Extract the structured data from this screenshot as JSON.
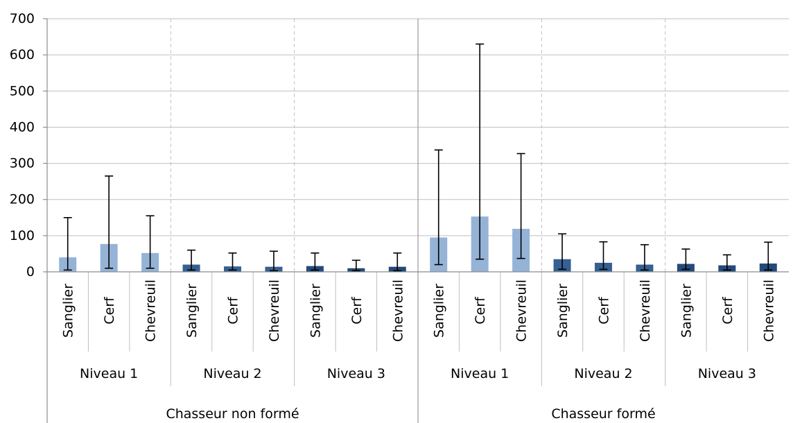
{
  "chart_data": {
    "type": "bar",
    "y_ticks": [
      0,
      100,
      200,
      300,
      400,
      500,
      600,
      700
    ],
    "ylim": [
      0,
      700
    ],
    "grid": true,
    "colors": {
      "level1": "#95B3D7",
      "level2": "#366092",
      "level3": "#244A7A",
      "error_bar": "#000000",
      "gridline": "#BFBFBF",
      "separator": "#BFBFBF"
    },
    "groups": [
      {
        "label": "Chasseur non formé",
        "levels": [
          {
            "label": "Niveau 1",
            "color_key": "level1",
            "items": [
              {
                "label": "Sanglier",
                "value": 40,
                "err_low": 5,
                "err_high": 150
              },
              {
                "label": "Cerf",
                "value": 77,
                "err_low": 10,
                "err_high": 265
              },
              {
                "label": "Chevreuil",
                "value": 52,
                "err_low": 10,
                "err_high": 155
              }
            ]
          },
          {
            "label": "Niveau 2",
            "color_key": "level2",
            "items": [
              {
                "label": "Sanglier",
                "value": 20,
                "err_low": 5,
                "err_high": 60
              },
              {
                "label": "Cerf",
                "value": 15,
                "err_low": 5,
                "err_high": 52
              },
              {
                "label": "Chevreuil",
                "value": 14,
                "err_low": 3,
                "err_high": 57
              }
            ]
          },
          {
            "label": "Niveau 3",
            "color_key": "level3",
            "items": [
              {
                "label": "Sanglier",
                "value": 16,
                "err_low": 5,
                "err_high": 52
              },
              {
                "label": "Cerf",
                "value": 10,
                "err_low": 3,
                "err_high": 32
              },
              {
                "label": "Chevreuil",
                "value": 14,
                "err_low": 3,
                "err_high": 52
              }
            ]
          }
        ]
      },
      {
        "label": "Chasseur formé",
        "levels": [
          {
            "label": "Niveau 1",
            "color_key": "level1",
            "items": [
              {
                "label": "Sanglier",
                "value": 95,
                "err_low": 20,
                "err_high": 337
              },
              {
                "label": "Cerf",
                "value": 153,
                "err_low": 35,
                "err_high": 630
              },
              {
                "label": "Chevreuil",
                "value": 119,
                "err_low": 37,
                "err_high": 327
              }
            ]
          },
          {
            "label": "Niveau 2",
            "color_key": "level2",
            "items": [
              {
                "label": "Sanglier",
                "value": 35,
                "err_low": 7,
                "err_high": 105
              },
              {
                "label": "Cerf",
                "value": 25,
                "err_low": 7,
                "err_high": 83
              },
              {
                "label": "Chevreuil",
                "value": 20,
                "err_low": 5,
                "err_high": 75
              }
            ]
          },
          {
            "label": "Niveau 3",
            "color_key": "level3",
            "items": [
              {
                "label": "Sanglier",
                "value": 22,
                "err_low": 7,
                "err_high": 63
              },
              {
                "label": "Cerf",
                "value": 18,
                "err_low": 5,
                "err_high": 47
              },
              {
                "label": "Chevreuil",
                "value": 23,
                "err_low": 5,
                "err_high": 82
              }
            ]
          }
        ]
      }
    ]
  }
}
